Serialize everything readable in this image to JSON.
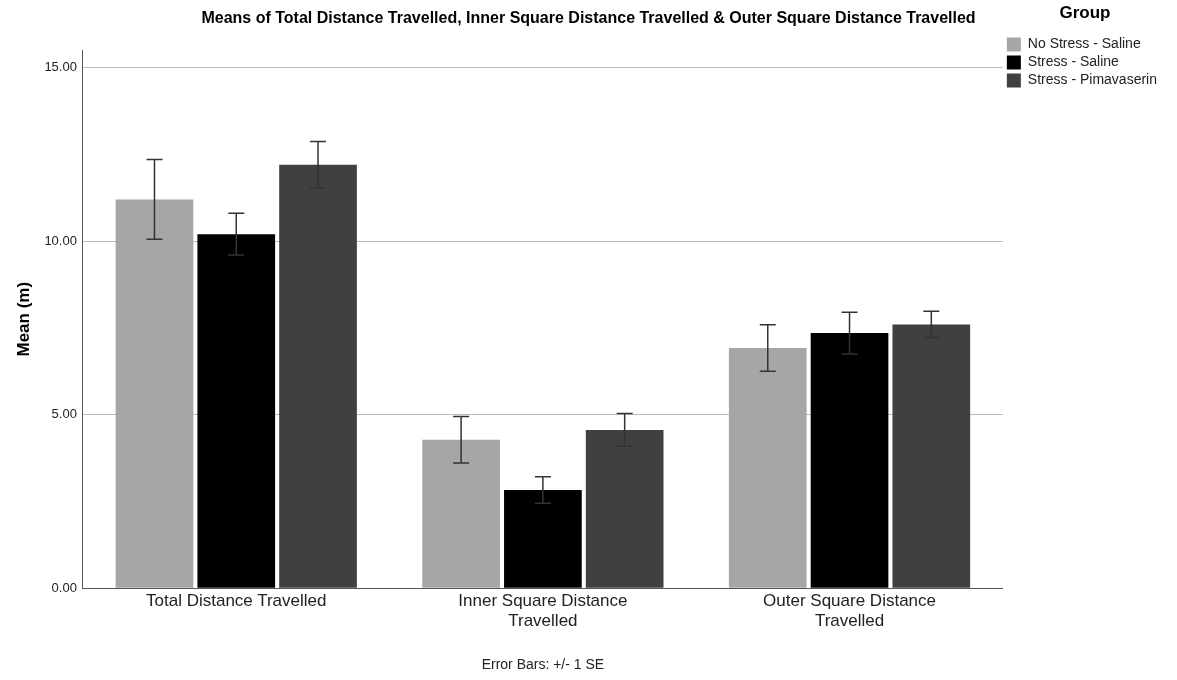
{
  "chart_data": {
    "type": "bar",
    "title": "Means of Total Distance Travelled, Inner Square Distance Travelled & Outer Square Distance Travelled",
    "ylabel": "Mean (m)",
    "legend_title": "Group",
    "legend": "top right",
    "grid": "y",
    "categories": [
      "Total Distance Travelled",
      "Inner Square Distance Travelled",
      "Outer Square Distance Travelled"
    ],
    "series": [
      {
        "name": "No Stress - Saline",
        "color": "#a6a6a6",
        "values": [
          11.2,
          4.28,
          6.92
        ],
        "errors": [
          1.15,
          0.67,
          0.67
        ]
      },
      {
        "name": "Stress - Saline",
        "color": "#000000",
        "values": [
          10.2,
          2.83,
          7.35
        ],
        "errors": [
          0.6,
          0.38,
          0.6
        ]
      },
      {
        "name": "Stress - Pimavaserin",
        "color": "#404040",
        "values": [
          12.2,
          4.56,
          7.6
        ],
        "errors": [
          0.67,
          0.47,
          0.38
        ]
      }
    ],
    "ylim": [
      0,
      15.5
    ],
    "yticks": [
      {
        "value": 0,
        "label": "0.00"
      },
      {
        "value": 5,
        "label": "5.00"
      },
      {
        "value": 10,
        "label": "10.00"
      },
      {
        "value": 15,
        "label": "15.00"
      }
    ],
    "annotations": [
      "Error Bars: +/- 1 SE"
    ]
  }
}
